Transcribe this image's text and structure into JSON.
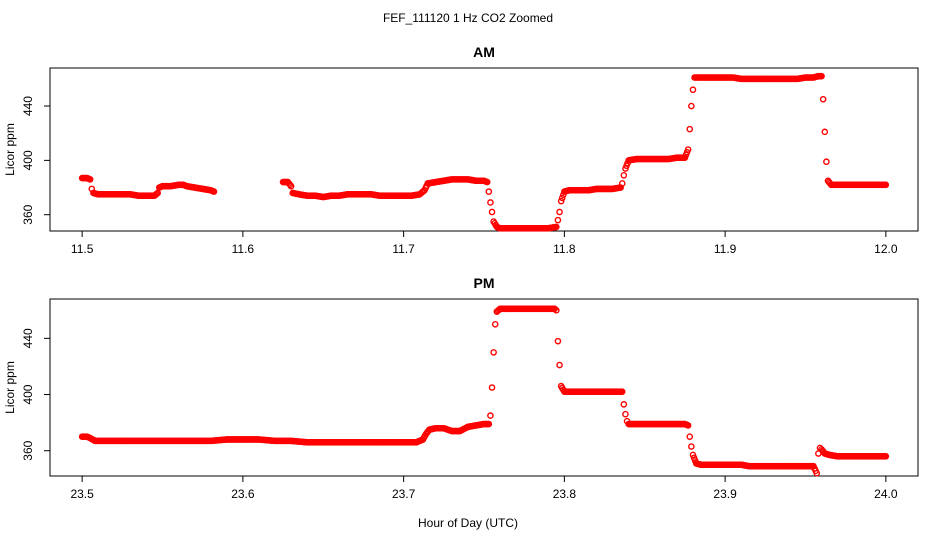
{
  "figure": {
    "title": "FEF_111120  1 Hz CO2 Zoomed",
    "xlabel": "Hour of Day (UTC)"
  },
  "chart_data": [
    {
      "type": "scatter",
      "title": "AM",
      "xlabel": "Hour of Day (UTC)",
      "ylabel": "Licor ppm",
      "xlim": [
        11.5,
        12.0
      ],
      "ylim": [
        348,
        468
      ],
      "xticks": [
        11.5,
        11.6,
        11.7,
        11.8,
        11.9,
        12.0
      ],
      "xtick_labels": [
        "11.5",
        "11.6",
        "11.7",
        "11.8",
        "11.9",
        "12.0"
      ],
      "yticks": [
        360,
        400,
        440
      ],
      "ytick_labels": [
        "360",
        "400",
        "440"
      ],
      "grid": false,
      "legend": "none",
      "marker_color": "#ff0000",
      "series_points": [
        [
          11.5,
          387
        ],
        [
          11.503,
          387
        ],
        [
          11.505,
          386
        ],
        [
          11.506,
          379
        ],
        [
          11.507,
          376
        ],
        [
          11.51,
          375
        ],
        [
          11.515,
          375
        ],
        [
          11.52,
          375
        ],
        [
          11.525,
          375
        ],
        [
          11.53,
          375
        ],
        [
          11.535,
          374
        ],
        [
          11.54,
          374
        ],
        [
          11.545,
          374
        ],
        [
          11.547,
          376
        ],
        [
          11.548,
          380
        ],
        [
          11.55,
          381
        ],
        [
          11.555,
          381
        ],
        [
          11.56,
          382
        ],
        [
          11.563,
          382
        ],
        [
          11.565,
          381
        ],
        [
          11.57,
          380
        ],
        [
          11.575,
          379
        ],
        [
          11.58,
          378
        ],
        [
          11.582,
          377
        ],
        [
          11.625,
          384
        ],
        [
          11.628,
          384
        ],
        [
          11.63,
          381
        ],
        [
          11.631,
          376
        ],
        [
          11.635,
          375
        ],
        [
          11.64,
          374
        ],
        [
          11.645,
          374
        ],
        [
          11.65,
          373
        ],
        [
          11.655,
          374
        ],
        [
          11.66,
          374
        ],
        [
          11.665,
          375
        ],
        [
          11.67,
          375
        ],
        [
          11.675,
          375
        ],
        [
          11.68,
          375
        ],
        [
          11.685,
          374
        ],
        [
          11.69,
          374
        ],
        [
          11.695,
          374
        ],
        [
          11.7,
          374
        ],
        [
          11.705,
          374
        ],
        [
          11.71,
          375
        ],
        [
          11.713,
          378
        ],
        [
          11.715,
          383
        ],
        [
          11.72,
          384
        ],
        [
          11.725,
          385
        ],
        [
          11.73,
          386
        ],
        [
          11.735,
          386
        ],
        [
          11.74,
          386
        ],
        [
          11.745,
          385
        ],
        [
          11.75,
          385
        ],
        [
          11.752,
          384
        ],
        [
          11.753,
          377
        ],
        [
          11.754,
          369
        ],
        [
          11.755,
          362
        ],
        [
          11.756,
          355
        ],
        [
          11.758,
          351
        ],
        [
          11.76,
          350
        ],
        [
          11.765,
          350
        ],
        [
          11.77,
          350
        ],
        [
          11.775,
          350
        ],
        [
          11.78,
          350
        ],
        [
          11.785,
          350
        ],
        [
          11.79,
          350
        ],
        [
          11.795,
          351
        ],
        [
          11.796,
          356
        ],
        [
          11.797,
          362
        ],
        [
          11.798,
          370
        ],
        [
          11.8,
          377
        ],
        [
          11.803,
          378
        ],
        [
          11.81,
          378
        ],
        [
          11.815,
          378
        ],
        [
          11.82,
          379
        ],
        [
          11.825,
          379
        ],
        [
          11.83,
          379
        ],
        [
          11.835,
          380
        ],
        [
          11.836,
          383
        ],
        [
          11.837,
          389
        ],
        [
          11.838,
          394
        ],
        [
          11.84,
          400
        ],
        [
          11.845,
          401
        ],
        [
          11.85,
          401
        ],
        [
          11.855,
          401
        ],
        [
          11.86,
          401
        ],
        [
          11.865,
          401
        ],
        [
          11.87,
          402
        ],
        [
          11.875,
          402
        ],
        [
          11.877,
          408
        ],
        [
          11.878,
          423
        ],
        [
          11.879,
          440
        ],
        [
          11.88,
          452
        ],
        [
          11.881,
          461
        ],
        [
          11.885,
          461
        ],
        [
          11.89,
          461
        ],
        [
          11.895,
          461
        ],
        [
          11.9,
          461
        ],
        [
          11.905,
          461
        ],
        [
          11.91,
          460
        ],
        [
          11.915,
          460
        ],
        [
          11.92,
          460
        ],
        [
          11.925,
          460
        ],
        [
          11.93,
          460
        ],
        [
          11.935,
          460
        ],
        [
          11.94,
          460
        ],
        [
          11.945,
          460
        ],
        [
          11.95,
          461
        ],
        [
          11.955,
          461
        ],
        [
          11.958,
          462
        ],
        [
          11.96,
          462
        ],
        [
          11.961,
          445
        ],
        [
          11.962,
          421
        ],
        [
          11.963,
          399
        ],
        [
          11.964,
          385
        ],
        [
          11.966,
          382
        ],
        [
          11.97,
          382
        ],
        [
          11.975,
          382
        ],
        [
          11.98,
          382
        ],
        [
          11.985,
          382
        ],
        [
          11.99,
          382
        ],
        [
          11.995,
          382
        ],
        [
          12.0,
          382
        ]
      ]
    },
    {
      "type": "scatter",
      "title": "PM",
      "xlabel": "Hour of Day (UTC)",
      "ylabel": "Licor ppm",
      "xlim": [
        23.5,
        24.0
      ],
      "ylim": [
        342,
        468
      ],
      "xticks": [
        23.5,
        23.6,
        23.7,
        23.8,
        23.9,
        24.0
      ],
      "xtick_labels": [
        "23.5",
        "23.6",
        "23.7",
        "23.8",
        "23.9",
        "24.0"
      ],
      "yticks": [
        360,
        400,
        440
      ],
      "ytick_labels": [
        "360",
        "400",
        "440"
      ],
      "grid": false,
      "legend": "none",
      "marker_color": "#ff0000",
      "series_points": [
        [
          23.5,
          370
        ],
        [
          23.503,
          370
        ],
        [
          23.505,
          369
        ],
        [
          23.508,
          367
        ],
        [
          23.51,
          367
        ],
        [
          23.52,
          367
        ],
        [
          23.53,
          367
        ],
        [
          23.54,
          367
        ],
        [
          23.55,
          367
        ],
        [
          23.56,
          367
        ],
        [
          23.57,
          367
        ],
        [
          23.58,
          367
        ],
        [
          23.59,
          368
        ],
        [
          23.6,
          368
        ],
        [
          23.61,
          368
        ],
        [
          23.62,
          367
        ],
        [
          23.63,
          367
        ],
        [
          23.64,
          366
        ],
        [
          23.65,
          366
        ],
        [
          23.66,
          366
        ],
        [
          23.67,
          366
        ],
        [
          23.68,
          366
        ],
        [
          23.69,
          366
        ],
        [
          23.7,
          366
        ],
        [
          23.708,
          366
        ],
        [
          23.712,
          368
        ],
        [
          23.714,
          372
        ],
        [
          23.716,
          375
        ],
        [
          23.72,
          376
        ],
        [
          23.725,
          376
        ],
        [
          23.73,
          374
        ],
        [
          23.735,
          374
        ],
        [
          23.74,
          377
        ],
        [
          23.745,
          378
        ],
        [
          23.75,
          379
        ],
        [
          23.753,
          379
        ],
        [
          23.754,
          385
        ],
        [
          23.755,
          405
        ],
        [
          23.756,
          430
        ],
        [
          23.757,
          450
        ],
        [
          23.758,
          459
        ],
        [
          23.76,
          461
        ],
        [
          23.765,
          461
        ],
        [
          23.77,
          461
        ],
        [
          23.775,
          461
        ],
        [
          23.78,
          461
        ],
        [
          23.785,
          461
        ],
        [
          23.79,
          461
        ],
        [
          23.794,
          461
        ],
        [
          23.795,
          460
        ],
        [
          23.796,
          438
        ],
        [
          23.797,
          421
        ],
        [
          23.798,
          406
        ],
        [
          23.8,
          402
        ],
        [
          23.805,
          402
        ],
        [
          23.81,
          402
        ],
        [
          23.815,
          402
        ],
        [
          23.82,
          402
        ],
        [
          23.825,
          402
        ],
        [
          23.83,
          402
        ],
        [
          23.836,
          402
        ],
        [
          23.837,
          393
        ],
        [
          23.838,
          386
        ],
        [
          23.839,
          381
        ],
        [
          23.84,
          379
        ],
        [
          23.845,
          379
        ],
        [
          23.85,
          379
        ],
        [
          23.855,
          379
        ],
        [
          23.86,
          379
        ],
        [
          23.865,
          379
        ],
        [
          23.87,
          379
        ],
        [
          23.875,
          379
        ],
        [
          23.877,
          378
        ],
        [
          23.878,
          370
        ],
        [
          23.879,
          363
        ],
        [
          23.88,
          357
        ],
        [
          23.882,
          351
        ],
        [
          23.885,
          350
        ],
        [
          23.89,
          350
        ],
        [
          23.895,
          350
        ],
        [
          23.9,
          350
        ],
        [
          23.905,
          350
        ],
        [
          23.91,
          350
        ],
        [
          23.915,
          349
        ],
        [
          23.92,
          349
        ],
        [
          23.925,
          349
        ],
        [
          23.93,
          349
        ],
        [
          23.935,
          349
        ],
        [
          23.94,
          349
        ],
        [
          23.945,
          349
        ],
        [
          23.95,
          349
        ],
        [
          23.955,
          349
        ],
        [
          23.957,
          344
        ],
        [
          23.958,
          358
        ],
        [
          23.959,
          362
        ],
        [
          23.96,
          361
        ],
        [
          23.962,
          358
        ],
        [
          23.965,
          357
        ],
        [
          23.97,
          356
        ],
        [
          23.975,
          356
        ],
        [
          23.98,
          356
        ],
        [
          23.985,
          356
        ],
        [
          23.99,
          356
        ],
        [
          23.995,
          356
        ],
        [
          24.0,
          356
        ]
      ]
    }
  ]
}
